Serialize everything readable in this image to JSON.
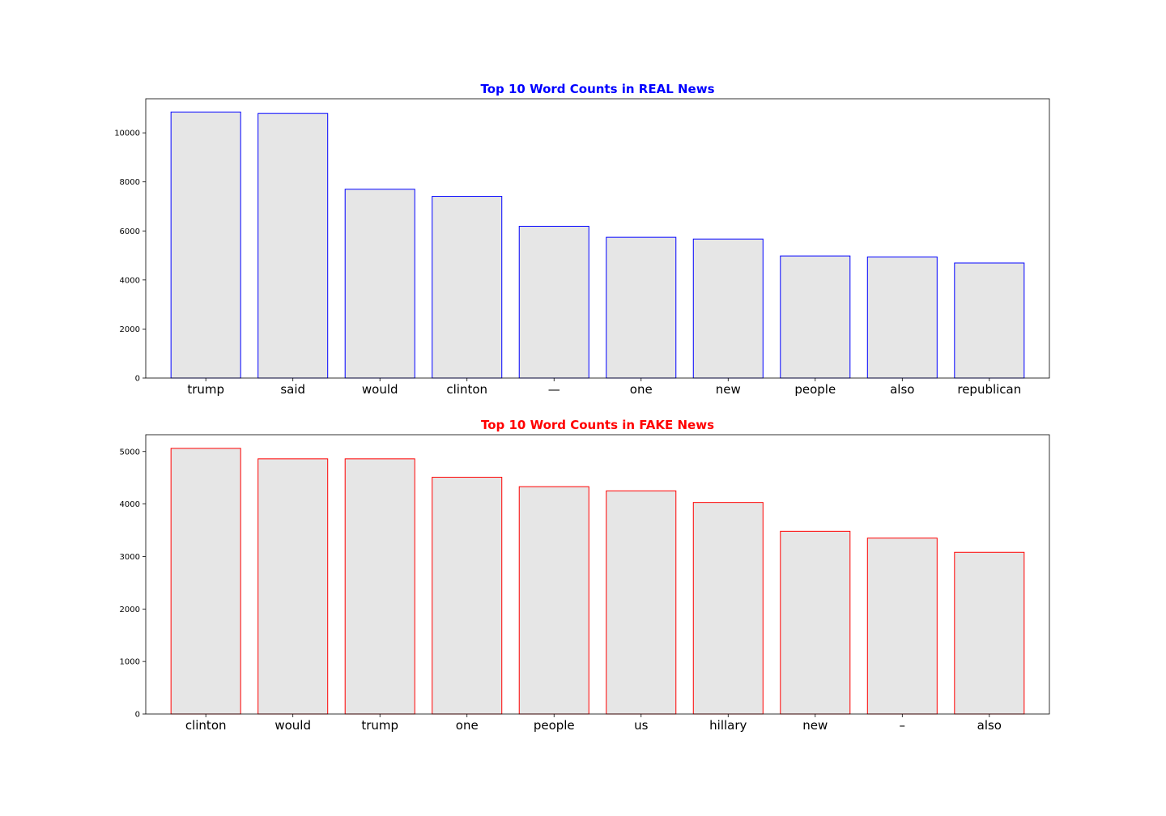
{
  "chart_data": [
    {
      "type": "bar",
      "title": "Top 10 Word Counts in REAL News",
      "title_color": "#0000ff",
      "bar_fill": "#e6e6e6",
      "bar_edge": "#0000ff",
      "categories": [
        "trump",
        "said",
        "would",
        "clinton",
        "—",
        "one",
        "new",
        "people",
        "also",
        "republican"
      ],
      "values": [
        10850,
        10790,
        7700,
        7410,
        6190,
        5740,
        5670,
        4980,
        4940,
        4690
      ],
      "xlabel": "",
      "ylabel": "",
      "ylim": [
        0,
        11390
      ],
      "yticks": [
        0,
        2000,
        4000,
        6000,
        8000,
        10000
      ],
      "grid": false
    },
    {
      "type": "bar",
      "title": "Top 10 Word Counts in FAKE News",
      "title_color": "#ff0000",
      "bar_fill": "#e6e6e6",
      "bar_edge": "#ff0000",
      "categories": [
        "clinton",
        "would",
        "trump",
        "one",
        "people",
        "us",
        "hillary",
        "new",
        "–",
        "also"
      ],
      "values": [
        5060,
        4860,
        4860,
        4510,
        4330,
        4250,
        4030,
        3480,
        3350,
        3080
      ],
      "xlabel": "",
      "ylabel": "",
      "ylim": [
        0,
        5320
      ],
      "yticks": [
        0,
        1000,
        2000,
        3000,
        4000,
        5000
      ],
      "grid": false
    }
  ]
}
